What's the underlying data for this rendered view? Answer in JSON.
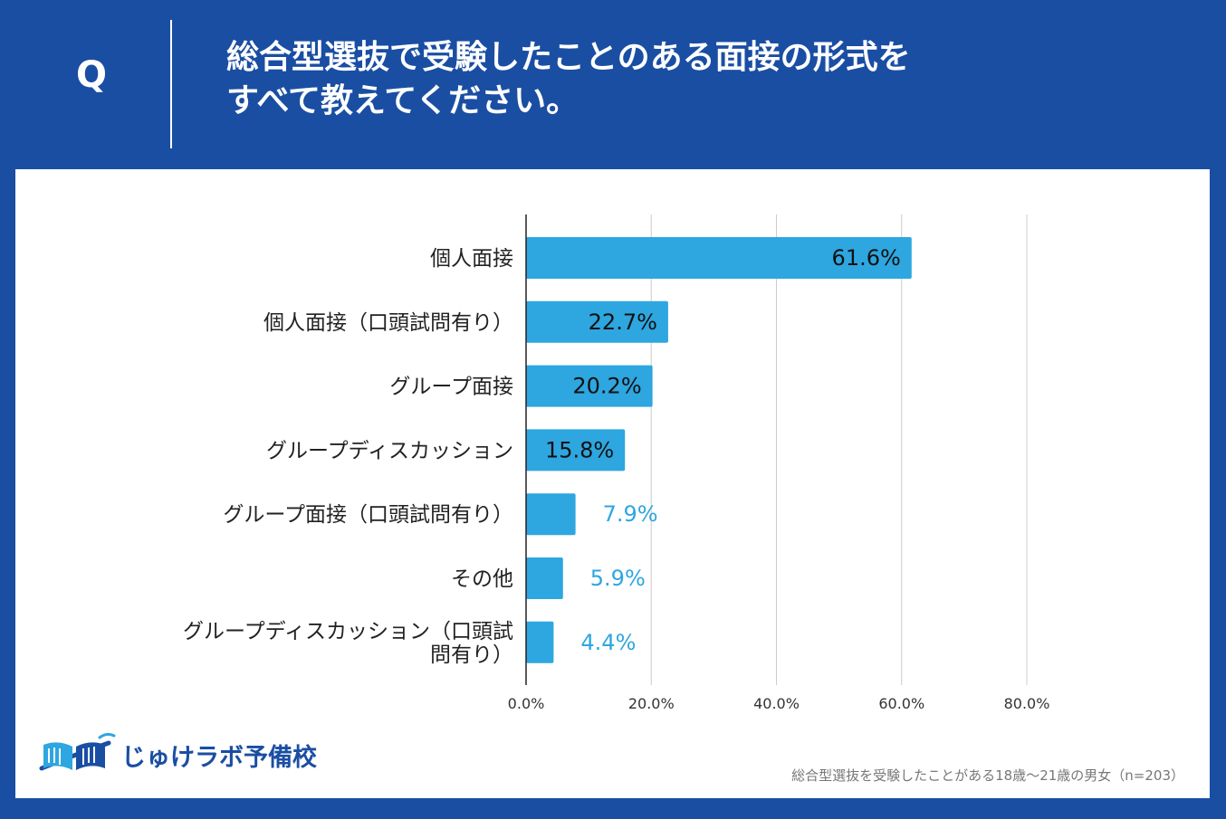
{
  "header": {
    "q_label": "Q",
    "title_line1": "総合型選抜で受験したことのある面接の形式を",
    "title_line2": "すべて教えてください。"
  },
  "colors": {
    "background": "#1a4ea3",
    "bar": "#2ea6e0",
    "inside_label": "#111111",
    "outside_label": "#2ea6e0",
    "grid": "#cccccc"
  },
  "chart_data": {
    "type": "bar",
    "orientation": "horizontal",
    "categories": [
      "個人面接",
      "個人面接（口頭試問有り）",
      "グループ面接",
      "グループディスカッション",
      "グループ面接（口頭試問有り）",
      "その他",
      "グループディスカッション（口頭試問有り）"
    ],
    "category_display_lines": [
      [
        "個人面接"
      ],
      [
        "個人面接（口頭試問有り）"
      ],
      [
        "グループ面接"
      ],
      [
        "グループディスカッション"
      ],
      [
        "グループ面接（口頭試問有り）"
      ],
      [
        "その他"
      ],
      [
        "グループディスカッション（口頭試",
        "問有り）"
      ]
    ],
    "values": [
      61.6,
      22.7,
      20.2,
      15.8,
      7.9,
      5.9,
      4.4
    ],
    "value_labels": [
      "61.6%",
      "22.7%",
      "20.2%",
      "15.8%",
      "7.9%",
      "5.9%",
      "4.4%"
    ],
    "xlim": [
      0,
      80
    ],
    "x_ticks": [
      0,
      20,
      40,
      60,
      80
    ],
    "x_tick_labels": [
      "0.0%",
      "20.0%",
      "40.0%",
      "60.0%",
      "80.0%"
    ],
    "grid": true,
    "legend": "none"
  },
  "logo": {
    "text": "じゅけラボ予備校"
  },
  "footnote": "総合型選抜を受験したことがある18歳～21歳の男女（n=203）"
}
